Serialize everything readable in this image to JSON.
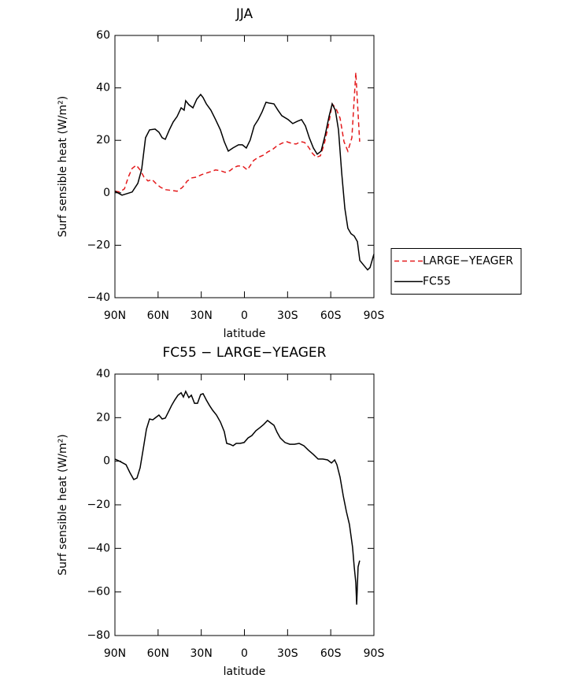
{
  "chart_data": [
    {
      "type": "line",
      "title": "JJA",
      "x_label": "latitude",
      "y_label": "Surf sensible heat (W/m²)",
      "xlim": [
        90,
        -90
      ],
      "ylim": [
        -40,
        60
      ],
      "xticks": [
        {
          "value": 90,
          "label": "90N"
        },
        {
          "value": 60,
          "label": "60N"
        },
        {
          "value": 30,
          "label": "30N"
        },
        0,
        {
          "value": -30,
          "label": "30S"
        },
        {
          "value": -60,
          "label": "60S"
        },
        {
          "value": -90,
          "label": "90S"
        }
      ],
      "yticks": [
        {
          "value": -40,
          "label": "−40"
        },
        {
          "value": -20,
          "label": "−20"
        },
        0,
        20,
        40,
        60
      ],
      "legend": "right",
      "series": [
        {
          "name": "LARGE−YEAGER",
          "color": "#e41a1c",
          "line_style": "dashed",
          "x": [
            90,
            86.7,
            83.4,
            80.7,
            78,
            75.2,
            72.5,
            69.8,
            67,
            64.3,
            61.6,
            58.3,
            55,
            50.6,
            46.8,
            43,
            39.7,
            36.4,
            33.1,
            29.8,
            26.5,
            23.2,
            20,
            16.7,
            13.4,
            10.1,
            7.4,
            4.6,
            1.3,
            -2,
            -4.2,
            -6.4,
            -9.6,
            -13.5,
            -16.2,
            -19.5,
            -22.8,
            -26,
            -29.3,
            -32.6,
            -35.9,
            -39.2,
            -41.8,
            -44.6,
            -47.3,
            -50,
            -52.8,
            -55.5,
            -58.3,
            -61,
            -63.7,
            -66.5,
            -69.2,
            -71.9,
            -74.7,
            -77.4,
            -80.1
          ],
          "values": [
            0.6,
            0.3,
            1.5,
            6,
            9.3,
            10.5,
            8.7,
            6,
            4.5,
            5.1,
            3.6,
            2.1,
            1.2,
            0.9,
            0.6,
            2.1,
            4.5,
            5.7,
            6,
            6.9,
            7.5,
            8.1,
            8.7,
            8.4,
            7.8,
            8.4,
            9.6,
            10.2,
            10.2,
            8.7,
            10.5,
            12.3,
            13.5,
            14.4,
            15.6,
            16.5,
            18,
            18.9,
            19.5,
            18.9,
            18.6,
            19.5,
            19.2,
            17.4,
            15,
            13.5,
            14.1,
            18.6,
            25.5,
            33.9,
            32.1,
            28.5,
            19.5,
            15.9,
            21,
            45.9,
            19.5
          ]
        },
        {
          "name": "FC55",
          "color": "#000000",
          "line_style": "solid",
          "x": [
            90,
            85.1,
            78,
            74.1,
            71.4,
            68.7,
            65.9,
            62.1,
            59.4,
            57.2,
            55,
            52.2,
            49.5,
            46.8,
            44,
            41.9,
            40.8,
            38.6,
            35.8,
            33.1,
            30.4,
            28.7,
            26.5,
            23.3,
            20,
            16.7,
            14,
            11.2,
            8,
            4.1,
            1.4,
            -1.3,
            -4,
            -6.8,
            -9.6,
            -12.3,
            -15,
            -17.2,
            -20.5,
            -23.3,
            -26,
            -30.4,
            -33.6,
            -36.9,
            -39.7,
            -42.4,
            -45.1,
            -47.9,
            -50.6,
            -53.3,
            -56.1,
            -58.8,
            -61,
            -63.2,
            -65.4,
            -67.6,
            -69.8,
            -71.9,
            -74.1,
            -76.3,
            -78.5,
            -80.2,
            -82.9,
            -85.6,
            -87.3,
            -90
          ],
          "values": [
            0.6,
            -0.9,
            0.3,
            3.6,
            9,
            21,
            24,
            24.3,
            23.1,
            21,
            20.4,
            24,
            27,
            29.1,
            32.4,
            31.5,
            35.1,
            33.6,
            32.4,
            35.7,
            37.5,
            36.3,
            33.9,
            31.5,
            27.9,
            24,
            19.5,
            15.9,
            17.1,
            18.3,
            18.3,
            17.1,
            20.1,
            25.5,
            27.9,
            30.9,
            34.5,
            34.2,
            33.9,
            31.5,
            29.4,
            27.9,
            26.4,
            27.3,
            27.9,
            25.5,
            21,
            17.1,
            14.7,
            15.9,
            21.9,
            29.1,
            33.9,
            31.5,
            24,
            7.5,
            -6,
            -13.5,
            -15.6,
            -16.5,
            -18.6,
            -25.8,
            -27.6,
            -29.4,
            -28.5,
            -23.4
          ]
        }
      ]
    },
    {
      "type": "line",
      "title": "FC55 − LARGE−YEAGER",
      "x_label": "latitude",
      "y_label": "Surf sensible heat (W/m²)",
      "xlim": [
        90,
        -90
      ],
      "ylim": [
        -80,
        40
      ],
      "xticks": [
        {
          "value": 90,
          "label": "90N"
        },
        {
          "value": 60,
          "label": "60N"
        },
        {
          "value": 30,
          "label": "30N"
        },
        0,
        {
          "value": -30,
          "label": "30S"
        },
        {
          "value": -60,
          "label": "60S"
        },
        {
          "value": -90,
          "label": "90S"
        }
      ],
      "yticks": [
        {
          "value": -80,
          "label": "−80"
        },
        {
          "value": -60,
          "label": "−60"
        },
        {
          "value": -40,
          "label": "−40"
        },
        {
          "value": -20,
          "label": "−20"
        },
        0,
        20,
        40
      ],
      "series": [
        {
          "color": "#000000",
          "line_style": "solid",
          "x": [
            90,
            86.7,
            82.3,
            79.6,
            76.9,
            74.7,
            72.5,
            70.3,
            68.1,
            65.9,
            63.7,
            61.6,
            59.4,
            57.2,
            55,
            52.8,
            50.6,
            48.4,
            46.2,
            44,
            42.4,
            40.8,
            38.6,
            36.9,
            34.7,
            32.6,
            30.4,
            28.7,
            26.5,
            24.3,
            22.1,
            19.4,
            16.7,
            14,
            12.3,
            10.1,
            7.9,
            5.7,
            3,
            0.2,
            -2.5,
            -5.2,
            -8,
            -10.7,
            -13.4,
            -16.1,
            -18.3,
            -20.5,
            -22.7,
            -24.9,
            -28.2,
            -31.5,
            -34.8,
            -38,
            -41.3,
            -44.6,
            -47.9,
            -51.2,
            -54.5,
            -57.8,
            -60.5,
            -62.7,
            -64.3,
            -66.5,
            -68.7,
            -70.9,
            -73,
            -75.2,
            -76.3,
            -77.4,
            -78,
            -79,
            -80.1
          ],
          "values": [
            1,
            0,
            -1.6,
            -5.2,
            -8.4,
            -7.7,
            -3,
            5.7,
            14.7,
            19.4,
            19,
            20.1,
            21.2,
            19.4,
            19.8,
            22.7,
            25.6,
            28.1,
            30.3,
            31.4,
            29.5,
            32.1,
            29.2,
            30.3,
            26.6,
            26.6,
            30.6,
            31,
            28.1,
            25.6,
            23.4,
            21.2,
            18,
            13.6,
            8.2,
            7.8,
            7.1,
            8.2,
            8.2,
            8.6,
            10.7,
            11.8,
            14,
            15.4,
            16.9,
            18.7,
            17.6,
            16.5,
            13.3,
            10.7,
            8.6,
            7.8,
            7.8,
            8.2,
            7.1,
            5,
            3.1,
            1,
            1,
            0.6,
            -0.8,
            0.6,
            -1.6,
            -7.3,
            -16,
            -23.2,
            -29,
            -39.5,
            -48.5,
            -55.7,
            -65.8,
            -48.5,
            -45.6
          ]
        }
      ]
    }
  ]
}
